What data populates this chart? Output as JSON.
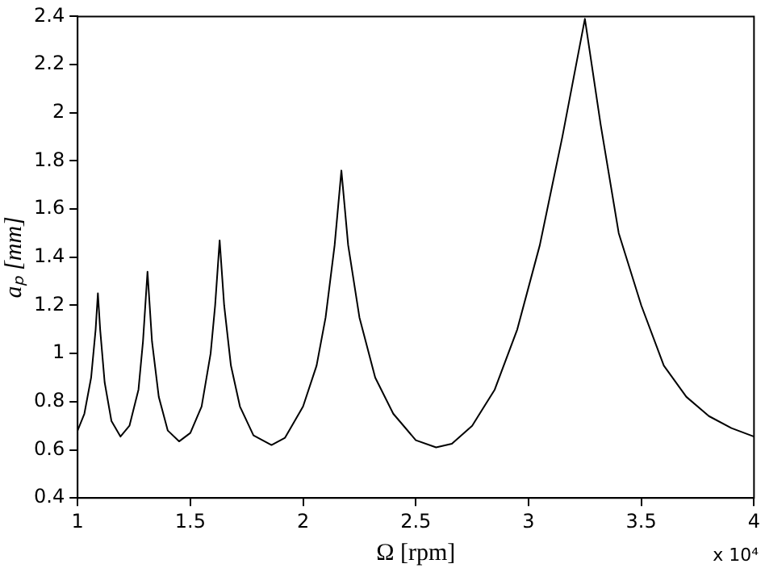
{
  "chart_data": {
    "type": "line",
    "xlabel": "Ω [rpm]",
    "ylabel": "aₚ [mm]",
    "annotations": [
      "x 10⁴"
    ],
    "xlim": [
      1,
      4
    ],
    "ylim": [
      0.4,
      2.4
    ],
    "xticks": [
      1,
      1.5,
      2,
      2.5,
      3,
      3.5,
      4
    ],
    "yticks": [
      0.4,
      0.6,
      0.8,
      1,
      1.2,
      1.4,
      1.6,
      1.8,
      2,
      2.2,
      2.4
    ],
    "grid": false,
    "legend": false,
    "marker": "none",
    "line_style": "solid",
    "series": [
      {
        "color": "#000000",
        "x": [
          1,
          1.03,
          1.06,
          1.08,
          1.09,
          1.1,
          1.12,
          1.15,
          1.19,
          1.23,
          1.27,
          1.29,
          1.31,
          1.33,
          1.36,
          1.4,
          1.45,
          1.5,
          1.55,
          1.59,
          1.61,
          1.63,
          1.65,
          1.68,
          1.72,
          1.78,
          1.86,
          1.92,
          2,
          2.06,
          2.1,
          2.14,
          2.17,
          2.2,
          2.25,
          2.32,
          2.4,
          2.5,
          2.59,
          2.66,
          2.75,
          2.85,
          2.95,
          3.05,
          3.15,
          3.25,
          3.32,
          3.4,
          3.5,
          3.6,
          3.7,
          3.8,
          3.9,
          4
        ],
        "values": [
          0.68,
          0.75,
          0.9,
          1.1,
          1.25,
          1.1,
          0.88,
          0.72,
          0.655,
          0.7,
          0.85,
          1.05,
          1.34,
          1.05,
          0.82,
          0.68,
          0.635,
          0.67,
          0.78,
          1,
          1.2,
          1.47,
          1.2,
          0.95,
          0.78,
          0.66,
          0.62,
          0.65,
          0.78,
          0.95,
          1.15,
          1.45,
          1.76,
          1.45,
          1.15,
          0.9,
          0.75,
          0.64,
          0.61,
          0.625,
          0.7,
          0.85,
          1.1,
          1.45,
          1.9,
          2.39,
          1.95,
          1.5,
          1.2,
          0.95,
          0.82,
          0.74,
          0.69,
          0.655
        ]
      }
    ]
  }
}
